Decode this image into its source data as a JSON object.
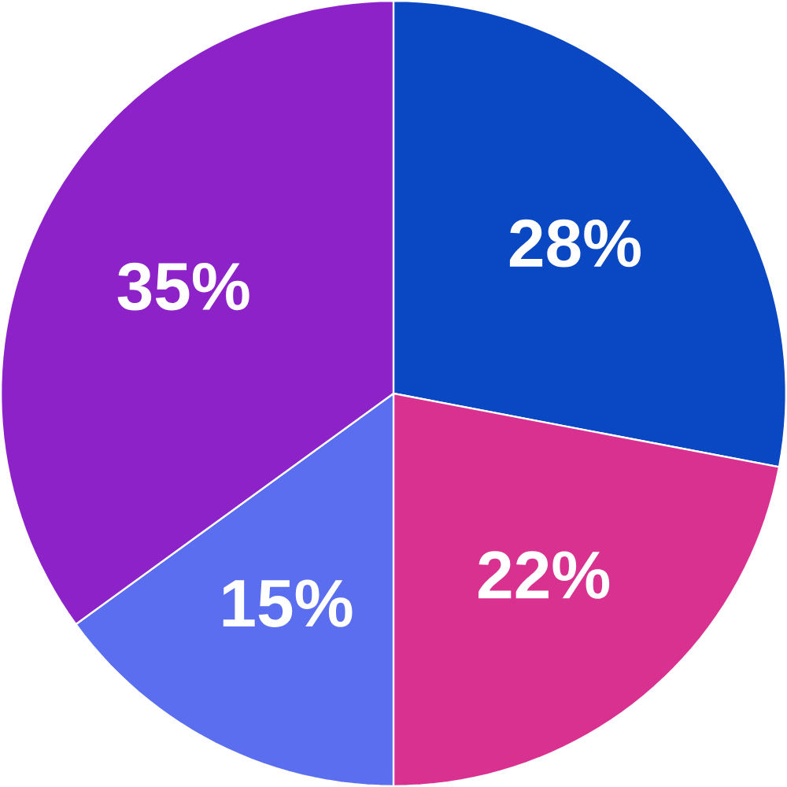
{
  "chart_data": {
    "type": "pie",
    "categories": [
      null,
      null,
      null,
      null
    ],
    "values": [
      28,
      22,
      15,
      35
    ],
    "value_labels": [
      "28%",
      "22%",
      "15%",
      "35%"
    ],
    "colors": [
      "#0a47c2",
      "#d9318f",
      "#5b6ef0",
      "#8e22c9"
    ]
  }
}
